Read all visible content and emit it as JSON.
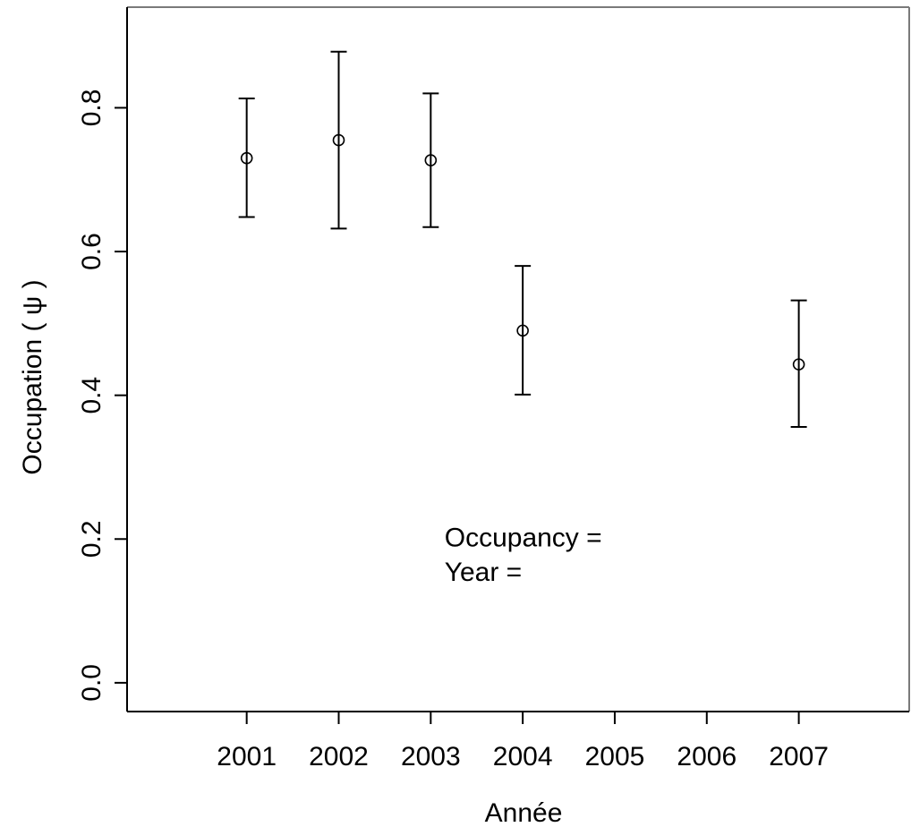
{
  "chart_data": {
    "type": "scatter",
    "title": "",
    "xlabel": "Année",
    "ylabel": "Occupation ( ψ )",
    "x_ticks": [
      "2001",
      "2002",
      "2003",
      "2004",
      "2005",
      "2006",
      "2007"
    ],
    "y_ticks": [
      "0.0",
      "0.2",
      "0.4",
      "0.6",
      "0.8"
    ],
    "xlim": [
      1999.7,
      2008.2
    ],
    "ylim": [
      -0.04,
      0.94
    ],
    "grid": false,
    "series": [
      {
        "x": [
          2001,
          2002,
          2003,
          2004,
          2007
        ],
        "y": [
          0.73,
          0.755,
          0.727,
          0.49,
          0.443
        ],
        "lower": [
          0.648,
          0.632,
          0.634,
          0.401,
          0.356
        ],
        "upper": [
          0.813,
          0.878,
          0.82,
          0.58,
          0.532
        ]
      }
    ],
    "annotations": [
      {
        "text": "Occupancy =",
        "x": 2003.15,
        "y": 0.19
      },
      {
        "text": "Year =",
        "x": 2003.15,
        "y": 0.142
      }
    ]
  }
}
